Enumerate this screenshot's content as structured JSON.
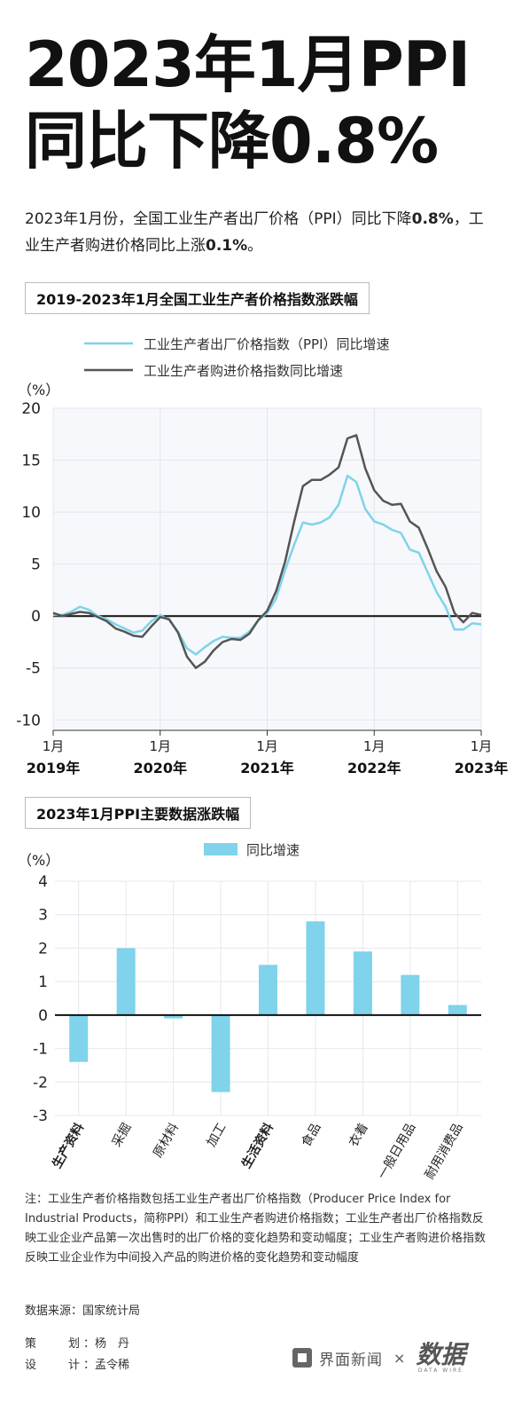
{
  "title": {
    "line1": "2023年1月PPI",
    "line2": "同比下降0.8%"
  },
  "subtitle": {
    "part1": "2023年1月份，全国工业生产者出厂价格（PPI）同比下降",
    "ppi_value": "0.8%",
    "part2": "，工业生产者购进价格同比上涨",
    "purchase_value": "0.1%",
    "part3": "。"
  },
  "line_chart_label": "2019-2023年1月全国工业生产者价格指数涨跌幅",
  "bar_chart_label": "2023年1月PPI主要数据涨跌幅",
  "chart_data": [
    {
      "type": "line",
      "unit_label": "（%）",
      "ylim": [
        -11,
        20
      ],
      "yticks": [
        20,
        15,
        10,
        5,
        0,
        -5,
        -10
      ],
      "x_ticks": [
        {
          "index": 0,
          "month": "1月",
          "year": "2019年"
        },
        {
          "index": 12,
          "month": "1月",
          "year": "2020年"
        },
        {
          "index": 24,
          "month": "1月",
          "year": "2021年"
        },
        {
          "index": 36,
          "month": "1月",
          "year": "2022年"
        },
        {
          "index": 48,
          "month": "1月",
          "year": "2023年"
        }
      ],
      "grid": true,
      "legend_position": "top",
      "series": [
        {
          "name": "工业生产者出厂价格指数（PPI）同比增速",
          "color": "#7fd3ea",
          "values": [
            0.1,
            0.1,
            0.4,
            0.9,
            0.6,
            0,
            -0.3,
            -0.8,
            -1.2,
            -1.6,
            -1.4,
            -0.5,
            0.1,
            -0.4,
            -1.5,
            -3.1,
            -3.7,
            -3.0,
            -2.4,
            -2.0,
            -2.1,
            -2.1,
            -1.5,
            -0.4,
            0.3,
            1.7,
            4.4,
            6.8,
            9.0,
            8.8,
            9.0,
            9.5,
            10.7,
            13.5,
            12.9,
            10.3,
            9.1,
            8.8,
            8.3,
            8.0,
            6.4,
            6.1,
            4.2,
            2.3,
            0.9,
            -1.3,
            -1.3,
            -0.7,
            -0.8
          ]
        },
        {
          "name": "工业生产者购进价格指数同比增速",
          "color": "#555555",
          "values": [
            0.3,
            0,
            0.2,
            0.4,
            0.3,
            -0.1,
            -0.5,
            -1.2,
            -1.5,
            -1.9,
            -2.0,
            -1.0,
            -0.1,
            -0.3,
            -1.6,
            -3.9,
            -5.0,
            -4.4,
            -3.3,
            -2.5,
            -2.2,
            -2.3,
            -1.7,
            -0.4,
            0.5,
            2.4,
            5.2,
            9.0,
            12.5,
            13.1,
            13.1,
            13.6,
            14.3,
            17.1,
            17.4,
            14.2,
            12.1,
            11.1,
            10.7,
            10.8,
            9.1,
            8.5,
            6.5,
            4.3,
            2.8,
            0.3,
            -0.6,
            0.3,
            0.1
          ]
        }
      ]
    },
    {
      "type": "bar",
      "unit_label": "（%）",
      "ylim": [
        -3,
        4
      ],
      "yticks": [
        4,
        3,
        2,
        1,
        0,
        -1,
        -2,
        -3
      ],
      "grid": true,
      "legend_position": "top",
      "series": [
        {
          "name": "同比增速",
          "color": "#7fd3ea",
          "values": [
            -1.4,
            2.0,
            -0.1,
            -2.3,
            1.5,
            2.8,
            1.9,
            1.2,
            0.3
          ]
        }
      ],
      "categories": [
        "生产资料",
        "采掘",
        "原材料",
        "加工",
        "生活资料",
        "食品",
        "衣着",
        "一般日用品",
        "耐用消费品"
      ],
      "bold_categories": [
        "生产资料",
        "生活资料"
      ]
    }
  ],
  "note": "注：工业生产者价格指数包括工业生产者出厂价格指数（Producer Price Index for Industrial Products，简称PPI）和工业生产者购进价格指数；工业生产者出厂价格指数反映工业企业产品第一次出售时的出厂价格的变化趋势和变动幅度；工业生产者购进价格指数反映工业企业作为中间投入产品的购进价格的变化趋势和变动幅度",
  "source": "数据来源：国家统计局",
  "credits": [
    {
      "key": "策划",
      "value": "杨　丹"
    },
    {
      "key": "设计",
      "value": "孟令稀"
    }
  ],
  "brand": {
    "name": "界面新闻",
    "separator": "×",
    "logo_text": "数据",
    "logo_sub": "DATA WIRE"
  }
}
